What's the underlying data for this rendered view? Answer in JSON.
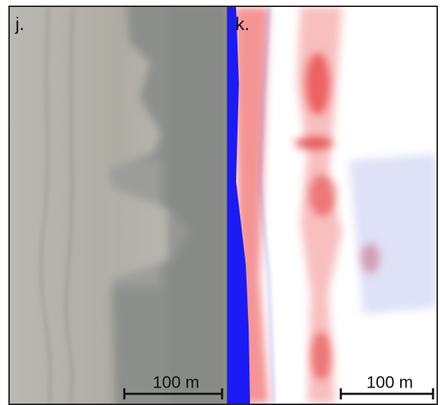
{
  "panels": [
    {
      "label": "j.",
      "scale_label": "100 m"
    },
    {
      "label": "k.",
      "scale_label": "100 m"
    }
  ]
}
